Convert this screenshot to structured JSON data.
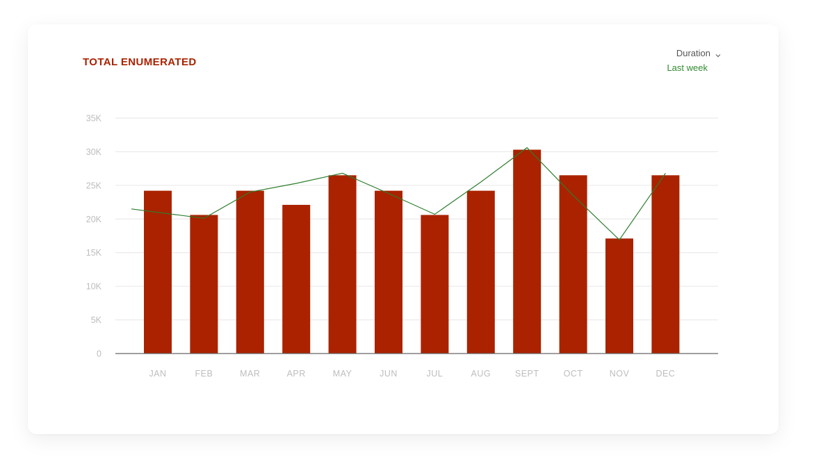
{
  "colors": {
    "bar": "#aa2200",
    "line": "#2e7d2e",
    "grid": "#e6e6e6",
    "axis": "#666666",
    "title": "#aa2200",
    "period": "#2f8a2f"
  },
  "header": {
    "title": "TOTAL ENUMERATED",
    "duration_label": "Duration",
    "duration_icon": "chevron-down-icon",
    "period_value": "Last week"
  },
  "chart_data": {
    "type": "bar",
    "categories": [
      "JAN",
      "FEB",
      "MAR",
      "APR",
      "MAY",
      "JUN",
      "JUL",
      "AUG",
      "SEPT",
      "OCT",
      "NOV",
      "DEC"
    ],
    "series": [
      {
        "type": "bar",
        "values": [
          24200,
          20600,
          24200,
          22100,
          26500,
          24200,
          20600,
          24200,
          30300,
          26500,
          17100,
          26500
        ]
      },
      {
        "type": "line",
        "values": [
          21500,
          20100,
          24000,
          25300,
          26800,
          23800,
          20700,
          25500,
          30600,
          23500,
          16900,
          26800
        ]
      }
    ],
    "y_ticks": [
      "0",
      "5K",
      "10K",
      "15K",
      "20K",
      "25K",
      "30K",
      "35K"
    ],
    "ylim": [
      0,
      35000
    ],
    "grid": true,
    "legend": "none"
  }
}
